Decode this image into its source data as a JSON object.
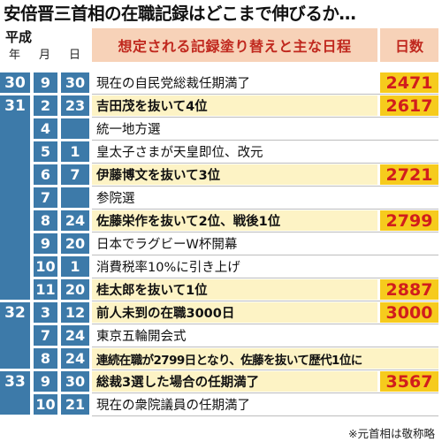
{
  "title": "安倍晋三首相の在職記録はどこまで伸びるか…",
  "header": {
    "era": "平成",
    "year": "年",
    "month": "月",
    "day": "日",
    "event": "想定される記録塗り替えと主な日程",
    "days": "日数"
  },
  "rows": [
    {
      "y": "30",
      "m": "9",
      "d": "30",
      "event": "現在の自民党総裁任期満了",
      "days": "2471",
      "hl": false
    },
    {
      "y": "31",
      "m": "2",
      "d": "23",
      "event": "吉田茂を抜いて4位",
      "days": "2617",
      "hl": true
    },
    {
      "y": "",
      "m": "4",
      "d": "",
      "event": "統一地方選",
      "days": "",
      "hl": false
    },
    {
      "y": "",
      "m": "5",
      "d": "1",
      "event": "皇太子さまが天皇即位、改元",
      "days": "",
      "hl": false
    },
    {
      "y": "",
      "m": "6",
      "d": "7",
      "event": "伊藤博文を抜いて3位",
      "days": "2721",
      "hl": true
    },
    {
      "y": "",
      "m": "7",
      "d": "",
      "event": "参院選",
      "days": "",
      "hl": false
    },
    {
      "y": "",
      "m": "8",
      "d": "24",
      "event": "佐藤栄作を抜いて2位、戦後1位",
      "days": "2799",
      "hl": true
    },
    {
      "y": "",
      "m": "9",
      "d": "20",
      "event": "日本でラグビーW杯開幕",
      "days": "",
      "hl": false
    },
    {
      "y": "",
      "m": "10",
      "d": "1",
      "event": "消費税率10%に引き上げ",
      "days": "",
      "hl": false
    },
    {
      "y": "",
      "m": "11",
      "d": "20",
      "event": "桂太郎を抜いて1位",
      "days": "2887",
      "hl": true
    },
    {
      "y": "32",
      "m": "3",
      "d": "12",
      "event": "前人未到の在職3000日",
      "days": "3000",
      "hl": true
    },
    {
      "y": "",
      "m": "7",
      "d": "24",
      "event": "東京五輪開会式",
      "days": "",
      "hl": false
    },
    {
      "y": "",
      "m": "8",
      "d": "24",
      "event": "連続在職が2799日となり、佐藤を抜いて歴代1位に",
      "days": "",
      "hl": true,
      "wide": true
    },
    {
      "y": "33",
      "m": "9",
      "d": "30",
      "event": "総裁3選した場合の任期満了",
      "days": "3567",
      "hl": true
    },
    {
      "y": "",
      "m": "10",
      "d": "21",
      "event": "現在の衆院議員の任期満了",
      "days": "",
      "hl": false
    }
  ],
  "footnote": "※元首相は敬称略",
  "colors": {
    "blue": "#3d7aa9",
    "header_bg": "#f7d2b8",
    "header_text": "#c0281e",
    "days_bg": "#f6cb1d",
    "days_text": "#d11d1d",
    "highlight_bg": "#fdf3c5"
  }
}
